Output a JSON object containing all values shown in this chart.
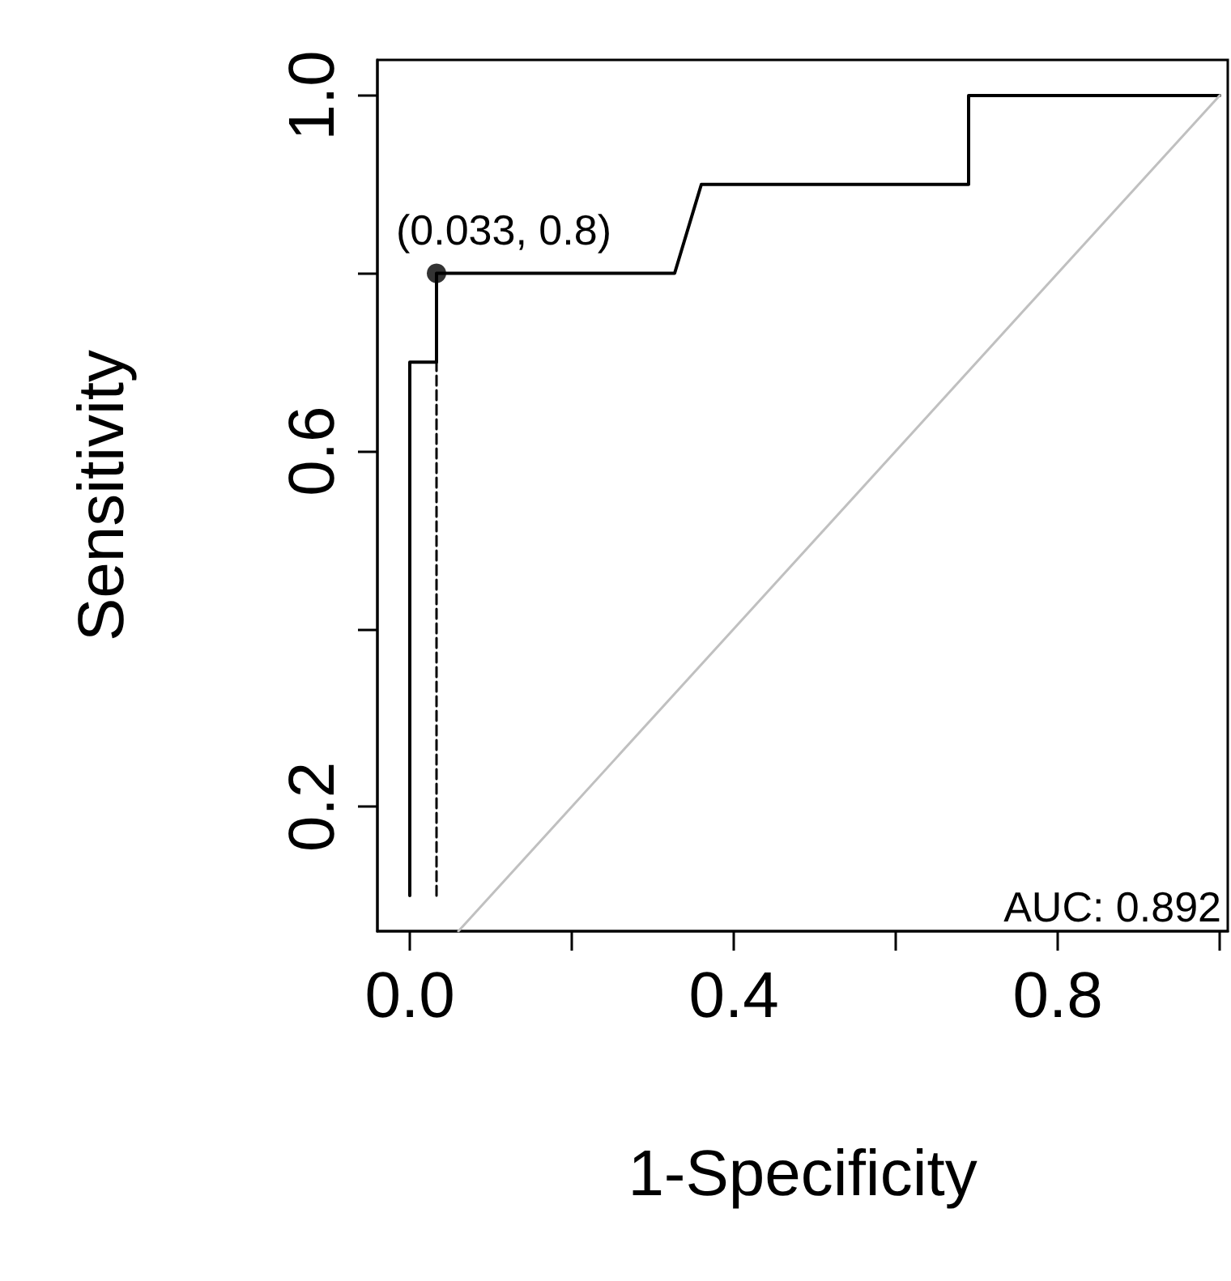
{
  "chart_data": {
    "type": "line",
    "xlabel": "1-Specificity",
    "ylabel": "Sensitivity",
    "xlim": [
      -0.04,
      1.01
    ],
    "ylim": [
      0.06,
      1.04
    ],
    "xticks": [
      {
        "value": 0,
        "label": "0.0"
      },
      {
        "value": 0.2,
        "label": null
      },
      {
        "value": 0.4,
        "label": "0.4"
      },
      {
        "value": 0.6,
        "label": null
      },
      {
        "value": 0.8,
        "label": "0.8"
      },
      {
        "value": 1.0,
        "label": null
      }
    ],
    "yticks": [
      {
        "value": 0.2,
        "label": "0.2"
      },
      {
        "value": 0.4,
        "label": null
      },
      {
        "value": 0.6,
        "label": "0.6"
      },
      {
        "value": 0.8,
        "label": null
      },
      {
        "value": 1.0,
        "label": "1.0"
      }
    ],
    "grid": false,
    "series": [
      {
        "color": "#000000",
        "x": [
          0,
          0,
          0.033,
          0.033,
          0.327,
          0.36,
          0.69,
          0.69,
          1.0
        ],
        "values": [
          0.1,
          0.7,
          0.7,
          0.8,
          0.8,
          0.9,
          0.9,
          1.0,
          1.0
        ],
        "marker": "none",
        "line_style": "solid"
      },
      {
        "color": "#000000",
        "x": [
          0.033,
          0.033
        ],
        "values": [
          0.1,
          0.8
        ],
        "marker": "none",
        "line_style": "dashed"
      },
      {
        "type": "scatter",
        "color": "#000000",
        "x": [
          0.033
        ],
        "values": [
          0.8
        ],
        "marker": "circle"
      },
      {
        "color": "#c0c0c0",
        "x": [
          0.06,
          1.0
        ],
        "values": [
          0.06,
          1.0
        ],
        "marker": "none",
        "line_style": "solid"
      }
    ],
    "annotations": [
      {
        "text": "(0.033, 0.8)",
        "x": 0.033,
        "y": 0.8
      },
      "AUC: 0.892"
    ]
  }
}
